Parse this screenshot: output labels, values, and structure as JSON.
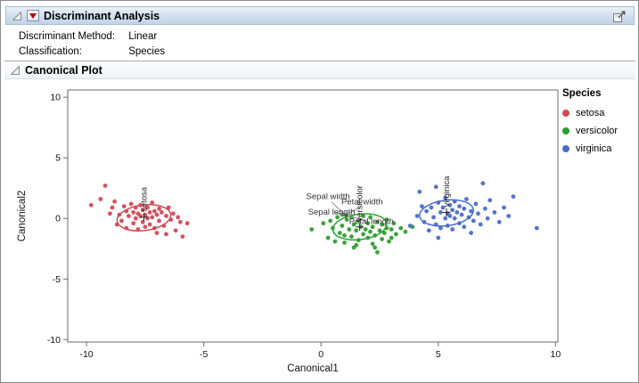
{
  "window": {
    "title": "Discriminant Analysis"
  },
  "report": {
    "rows": [
      {
        "label": "Discriminant Method:",
        "value": "Linear"
      },
      {
        "label": "Classification:",
        "value": "Species"
      }
    ],
    "section_title": "Canonical Plot"
  },
  "legend": {
    "title": "Species",
    "items": [
      {
        "label": "setosa",
        "color": "#cf4a57"
      },
      {
        "label": "versicolor",
        "color": "#2f9e32"
      },
      {
        "label": "virginica",
        "color": "#4a6dc9"
      }
    ]
  },
  "chart_data": {
    "type": "scatter",
    "title": "Canonical Plot",
    "xlabel": "Canonical1",
    "ylabel": "Canonical2",
    "xlim": [
      -10.8,
      10.1
    ],
    "ylim": [
      -10.2,
      10.6
    ],
    "x_ticks": [
      -10,
      -5,
      0,
      5,
      10
    ],
    "y_ticks": [
      -10,
      -5,
      0,
      5,
      10
    ],
    "grid": false,
    "legend_position": "right",
    "series": [
      {
        "name": "setosa",
        "color": "#cf4a57",
        "centroid": [
          -7.55,
          0.1
        ],
        "ellipse": {
          "cx": -7.55,
          "cy": 0.05,
          "rx": 1.15,
          "ry": 1.05,
          "angle": -7
        },
        "points": [
          [
            -9.8,
            1.1
          ],
          [
            -9.4,
            1.6
          ],
          [
            -9.2,
            2.7
          ],
          [
            -8.9,
            0.9
          ],
          [
            -8.8,
            1.4
          ],
          [
            -8.6,
            0.3
          ],
          [
            -8.5,
            -0.2
          ],
          [
            -8.4,
            1.0
          ],
          [
            -8.3,
            0.6
          ],
          [
            -8.3,
            -0.8
          ],
          [
            -8.2,
            0.2
          ],
          [
            -8.1,
            1.2
          ],
          [
            -8.0,
            0.5
          ],
          [
            -8.0,
            -0.4
          ],
          [
            -7.9,
            0.9
          ],
          [
            -7.9,
            0.0
          ],
          [
            -7.8,
            0.4
          ],
          [
            -7.8,
            -0.9
          ],
          [
            -7.7,
            1.1
          ],
          [
            -7.7,
            0.2
          ],
          [
            -7.6,
            0.7
          ],
          [
            -7.6,
            -0.3
          ],
          [
            -7.5,
            0.3
          ],
          [
            -7.5,
            -0.7
          ],
          [
            -7.4,
            0.9
          ],
          [
            -7.4,
            0.0
          ],
          [
            -7.3,
            0.5
          ],
          [
            -7.3,
            -0.5
          ],
          [
            -7.2,
            1.3
          ],
          [
            -7.2,
            0.1
          ],
          [
            -7.1,
            0.6
          ],
          [
            -7.1,
            -0.8
          ],
          [
            -7.0,
            0.3
          ],
          [
            -6.9,
            0.8
          ],
          [
            -6.9,
            -0.2
          ],
          [
            -6.8,
            0.5
          ],
          [
            -6.7,
            -0.6
          ],
          [
            -6.6,
            0.2
          ],
          [
            -6.5,
            0.9
          ],
          [
            -6.4,
            -0.1
          ],
          [
            -6.3,
            0.4
          ],
          [
            -6.2,
            -1.0
          ],
          [
            -6.1,
            0.1
          ],
          [
            -6.0,
            -0.3
          ],
          [
            -5.9,
            -1.5
          ],
          [
            -5.7,
            -0.4
          ],
          [
            -9.0,
            0.4
          ],
          [
            -8.7,
            -0.5
          ],
          [
            -7.0,
            -1.2
          ],
          [
            -6.6,
            -1.3
          ]
        ]
      },
      {
        "name": "versicolor",
        "color": "#2f9e32",
        "centroid": [
          1.65,
          -0.7
        ],
        "ellipse": {
          "cx": 1.65,
          "cy": -0.7,
          "rx": 1.15,
          "ry": 1.05,
          "angle": -7
        },
        "points": [
          [
            -0.4,
            -0.9
          ],
          [
            0.1,
            -0.4
          ],
          [
            0.3,
            -1.6
          ],
          [
            0.5,
            -0.8
          ],
          [
            0.7,
            0.1
          ],
          [
            0.8,
            -1.2
          ],
          [
            0.9,
            -0.6
          ],
          [
            1.0,
            -2.0
          ],
          [
            1.1,
            -0.1
          ],
          [
            1.2,
            -0.9
          ],
          [
            1.3,
            -1.5
          ],
          [
            1.4,
            -0.5
          ],
          [
            1.4,
            -2.4
          ],
          [
            1.5,
            -1.0
          ],
          [
            1.6,
            -0.2
          ],
          [
            1.6,
            -1.8
          ],
          [
            1.7,
            -0.7
          ],
          [
            1.8,
            -1.3
          ],
          [
            1.8,
            0.2
          ],
          [
            1.9,
            -0.9
          ],
          [
            2.0,
            -1.6
          ],
          [
            2.0,
            -0.4
          ],
          [
            2.1,
            -1.1
          ],
          [
            2.2,
            -2.1
          ],
          [
            2.2,
            -0.7
          ],
          [
            2.3,
            -1.4
          ],
          [
            2.4,
            -0.3
          ],
          [
            2.4,
            -2.8
          ],
          [
            2.5,
            -1.0
          ],
          [
            2.6,
            -1.7
          ],
          [
            2.6,
            -0.5
          ],
          [
            2.7,
            -1.2
          ],
          [
            2.8,
            -0.8
          ],
          [
            2.9,
            -1.9
          ],
          [
            3.0,
            -0.9
          ],
          [
            3.1,
            -0.4
          ],
          [
            3.2,
            -1.3
          ],
          [
            3.4,
            -0.8
          ],
          [
            3.6,
            -1.1
          ],
          [
            3.9,
            -0.7
          ],
          [
            0.4,
            -0.2
          ],
          [
            0.9,
            0.3
          ],
          [
            1.3,
            0.1
          ],
          [
            2.1,
            0.1
          ],
          [
            2.8,
            -0.1
          ],
          [
            1.0,
            -1.4
          ],
          [
            1.5,
            -2.2
          ],
          [
            2.3,
            -2.4
          ],
          [
            0.6,
            -1.9
          ],
          [
            3.0,
            -1.6
          ]
        ]
      },
      {
        "name": "virginica",
        "color": "#4a6dc9",
        "centroid": [
          5.35,
          0.5
        ],
        "ellipse": {
          "cx": 5.35,
          "cy": 0.45,
          "rx": 1.15,
          "ry": 1.05,
          "angle": -7
        },
        "points": [
          [
            3.8,
            -0.6
          ],
          [
            4.1,
            0.2
          ],
          [
            4.3,
            1.0
          ],
          [
            4.4,
            -0.3
          ],
          [
            4.5,
            0.6
          ],
          [
            4.6,
            -1.0
          ],
          [
            4.7,
            0.9
          ],
          [
            4.8,
            0.1
          ],
          [
            4.9,
            2.6
          ],
          [
            4.9,
            -0.5
          ],
          [
            5.0,
            1.3
          ],
          [
            5.1,
            0.5
          ],
          [
            5.1,
            -0.8
          ],
          [
            5.2,
            0.9
          ],
          [
            5.3,
            0.0
          ],
          [
            5.3,
            1.7
          ],
          [
            5.4,
            0.4
          ],
          [
            5.4,
            -0.6
          ],
          [
            5.5,
            1.1
          ],
          [
            5.5,
            0.2
          ],
          [
            5.6,
            0.7
          ],
          [
            5.6,
            -0.9
          ],
          [
            5.7,
            1.4
          ],
          [
            5.7,
            0.0
          ],
          [
            5.8,
            0.5
          ],
          [
            5.9,
            -0.4
          ],
          [
            5.9,
            1.0
          ],
          [
            6.0,
            0.3
          ],
          [
            6.1,
            0.8
          ],
          [
            6.1,
            -0.7
          ],
          [
            6.2,
            1.6
          ],
          [
            6.3,
            0.1
          ],
          [
            6.4,
            0.6
          ],
          [
            6.5,
            -0.2
          ],
          [
            6.6,
            1.2
          ],
          [
            6.7,
            0.4
          ],
          [
            6.8,
            -0.5
          ],
          [
            6.9,
            2.9
          ],
          [
            7.0,
            0.8
          ],
          [
            7.1,
            0.0
          ],
          [
            7.2,
            1.5
          ],
          [
            7.4,
            0.5
          ],
          [
            7.6,
            -0.3
          ],
          [
            7.8,
            0.9
          ],
          [
            8.0,
            0.2
          ],
          [
            8.2,
            1.8
          ],
          [
            4.2,
            2.2
          ],
          [
            5.0,
            -1.6
          ],
          [
            6.4,
            -1.2
          ],
          [
            9.2,
            -0.8
          ]
        ]
      }
    ],
    "biplot": {
      "origin": [
        1.05,
        0.25
      ],
      "rays": [
        {
          "label": "Sepal width",
          "to": [
            0.45,
            1.35
          ],
          "label_pos": [
            0.3,
            1.6
          ]
        },
        {
          "label": "Petal width",
          "to": [
            1.65,
            0.95
          ],
          "label_pos": [
            1.75,
            1.15
          ]
        },
        {
          "label": "Sepal length",
          "to": [
            0.6,
            0.5
          ],
          "label_pos": [
            0.45,
            0.3
          ]
        },
        {
          "label": "Petal length",
          "to": [
            1.95,
            -0.2
          ],
          "label_pos": [
            2.15,
            -0.45
          ]
        }
      ]
    }
  }
}
